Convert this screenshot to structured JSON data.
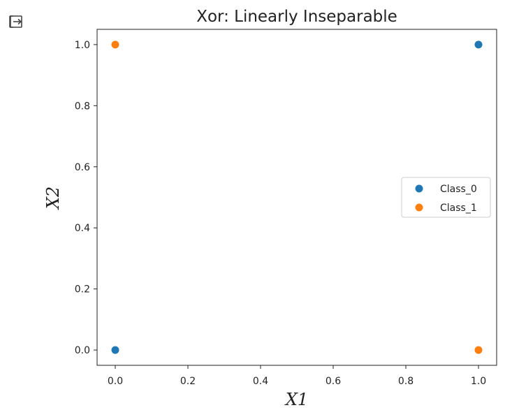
{
  "toolbar": {
    "output_icon": "output-redirect-icon"
  },
  "chart_data": {
    "type": "scatter",
    "title": "Xor: Linearly Inseparable",
    "xlabel": "X1",
    "ylabel": "X2",
    "xlim": [
      -0.05,
      1.05
    ],
    "ylim": [
      -0.05,
      1.05
    ],
    "xticks": [
      "0.0",
      "0.2",
      "0.4",
      "0.6",
      "0.8",
      "1.0"
    ],
    "yticks": [
      "0.0",
      "0.2",
      "0.4",
      "0.6",
      "0.8",
      "1.0"
    ],
    "grid": false,
    "legend_position": "center-right",
    "series": [
      {
        "name": "Class_0",
        "color": "#1f77b4",
        "points": [
          {
            "x": 0,
            "y": 0
          },
          {
            "x": 1,
            "y": 1
          }
        ]
      },
      {
        "name": "Class_1",
        "color": "#ff7f0e",
        "points": [
          {
            "x": 0,
            "y": 1
          },
          {
            "x": 1,
            "y": 0
          }
        ]
      }
    ]
  }
}
